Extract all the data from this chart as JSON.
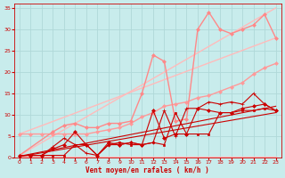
{
  "background_color": "#c8ecec",
  "grid_color": "#aadddd",
  "xlabel": "Vent moyen/en rafales ( km/h )",
  "xlabel_color": "#cc0000",
  "tick_color": "#cc0000",
  "xlim": [
    -0.5,
    23.5
  ],
  "ylim": [
    0,
    36
  ],
  "xticks": [
    0,
    1,
    2,
    3,
    4,
    5,
    6,
    7,
    8,
    9,
    10,
    11,
    12,
    13,
    14,
    15,
    16,
    17,
    18,
    19,
    20,
    21,
    22,
    23
  ],
  "yticks": [
    0,
    5,
    10,
    15,
    20,
    25,
    30,
    35
  ],
  "series": [
    {
      "x": [
        0,
        23
      ],
      "y": [
        0.2,
        0.2
      ],
      "color": "#ffbbbb",
      "linewidth": 1.0,
      "marker": null,
      "linestyle": "-"
    },
    {
      "x": [
        0,
        23
      ],
      "y": [
        0.5,
        35.0
      ],
      "color": "#ffbbbb",
      "linewidth": 1.0,
      "marker": null,
      "linestyle": "-"
    },
    {
      "x": [
        0,
        23
      ],
      "y": [
        5.5,
        28.0
      ],
      "color": "#ffbbbb",
      "linewidth": 1.0,
      "marker": null,
      "linestyle": "-"
    },
    {
      "x": [
        0,
        1,
        2,
        3,
        4,
        5,
        6,
        7,
        8,
        9,
        10,
        11,
        12,
        13,
        14,
        15,
        16,
        17,
        18,
        19,
        20,
        21,
        22,
        23
      ],
      "y": [
        5.5,
        5.5,
        5.5,
        5.5,
        5.5,
        5.5,
        5.5,
        6.0,
        6.5,
        7.0,
        8.0,
        9.5,
        10.5,
        12.0,
        12.5,
        13.0,
        14.0,
        14.5,
        15.5,
        16.5,
        17.5,
        19.5,
        21.0,
        22.0
      ],
      "color": "#ff9999",
      "linewidth": 1.0,
      "marker": "D",
      "markersize": 2.0,
      "linestyle": "-"
    },
    {
      "x": [
        0,
        3,
        4,
        5,
        6,
        7,
        8,
        9,
        10,
        11,
        12,
        13,
        14,
        15,
        16,
        17,
        18,
        19,
        20,
        21,
        22,
        23
      ],
      "y": [
        0.5,
        6.0,
        7.5,
        8.0,
        7.0,
        7.0,
        8.0,
        8.0,
        8.5,
        15.0,
        24.0,
        22.5,
        8.5,
        9.0,
        30.0,
        34.0,
        30.0,
        29.0,
        30.0,
        31.0,
        33.5,
        28.0
      ],
      "color": "#ff8888",
      "linewidth": 1.0,
      "marker": "D",
      "markersize": 2.0,
      "linestyle": "-"
    },
    {
      "x": [
        0,
        1,
        2,
        3,
        4,
        5,
        6,
        7,
        8,
        9,
        10,
        11,
        12,
        13,
        14,
        15,
        16,
        17,
        18,
        19,
        20,
        21,
        22,
        23
      ],
      "y": [
        0.5,
        0.5,
        0.5,
        2.5,
        4.5,
        3.0,
        1.0,
        0.5,
        3.0,
        3.0,
        3.5,
        3.0,
        3.5,
        11.0,
        5.0,
        11.5,
        11.5,
        13.0,
        12.5,
        13.0,
        12.5,
        15.0,
        12.5,
        11.0
      ],
      "color": "#cc0000",
      "linewidth": 0.8,
      "marker": "+",
      "markersize": 3.0,
      "linestyle": "-"
    },
    {
      "x": [
        0,
        1,
        2,
        3,
        4,
        5,
        6,
        7,
        8,
        9,
        10,
        11,
        12,
        13,
        14,
        15,
        16,
        17,
        18,
        19,
        20,
        21,
        22,
        23
      ],
      "y": [
        0.5,
        0.5,
        0.5,
        2.0,
        3.0,
        6.0,
        3.0,
        0.5,
        3.5,
        3.0,
        3.5,
        3.0,
        11.0,
        4.5,
        5.5,
        5.5,
        11.5,
        11.0,
        10.5,
        10.5,
        11.5,
        12.0,
        12.5,
        11.0
      ],
      "color": "#cc0000",
      "linewidth": 0.8,
      "marker": "D",
      "markersize": 2.0,
      "linestyle": "-"
    },
    {
      "x": [
        0,
        1,
        2,
        3,
        4,
        5,
        6,
        7,
        8,
        9,
        10,
        11,
        12,
        13,
        14,
        15,
        16,
        17,
        18,
        19,
        20,
        21,
        22,
        23
      ],
      "y": [
        0.5,
        0.5,
        0.5,
        0.5,
        0.5,
        3.0,
        3.0,
        0.5,
        3.0,
        3.5,
        3.0,
        3.0,
        3.5,
        3.0,
        10.5,
        5.5,
        5.5,
        5.5,
        10.5,
        10.5,
        11.0,
        11.0,
        11.5,
        11.0
      ],
      "color": "#cc0000",
      "linewidth": 0.8,
      "marker": "s",
      "markersize": 2.0,
      "linestyle": "-"
    },
    {
      "x": [
        0,
        23
      ],
      "y": [
        0.3,
        12.0
      ],
      "color": "#cc0000",
      "linewidth": 0.8,
      "marker": null,
      "linestyle": "-"
    },
    {
      "x": [
        0,
        23
      ],
      "y": [
        0.2,
        10.5
      ],
      "color": "#cc0000",
      "linewidth": 0.8,
      "marker": null,
      "linestyle": "-"
    }
  ]
}
